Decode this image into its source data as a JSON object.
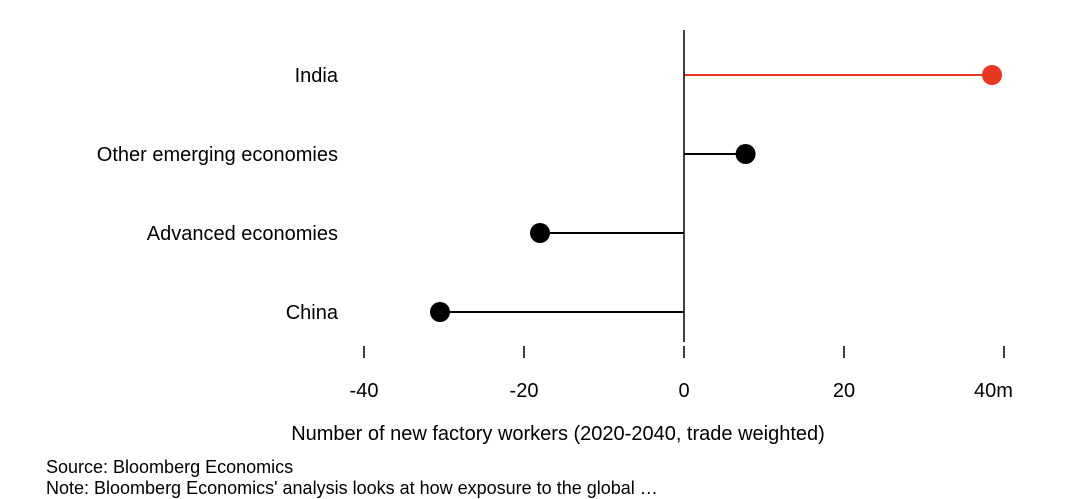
{
  "chart_data": {
    "type": "dot",
    "categories": [
      "India",
      "Other emerging economies",
      "Advanced economies",
      "China"
    ],
    "values": [
      38.5,
      7.7,
      -18.0,
      -30.5
    ],
    "highlight": "India",
    "xlim": [
      -40,
      40
    ],
    "ticks": [
      -40,
      -20,
      0,
      20,
      40
    ],
    "tick_labels": [
      "-40",
      "-20",
      "0",
      "20",
      "40m"
    ],
    "xlabel": "Number of new factory workers (2020-2040, trade weighted)",
    "colors": {
      "highlight": "#e8371f",
      "default": "#000000"
    }
  },
  "footer": {
    "source": "Source: Bloomberg Economics",
    "note": "Note: Bloomberg Economics' analysis looks at how exposure to the global …"
  }
}
